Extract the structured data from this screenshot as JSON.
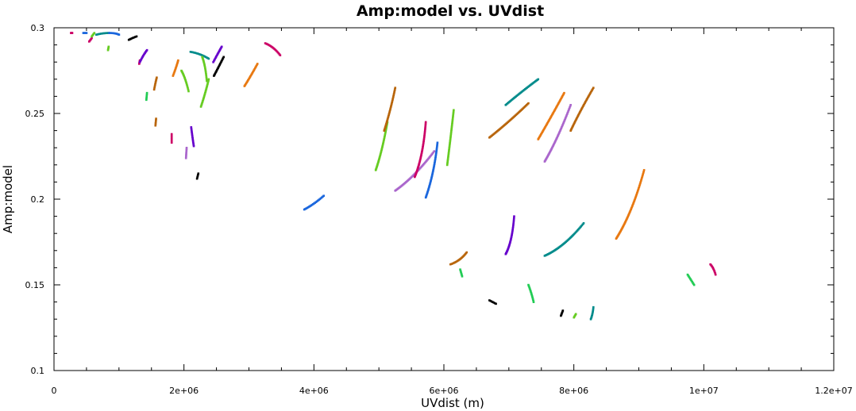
{
  "chart_data": {
    "type": "scatter",
    "title": "Amp:model vs. UVdist",
    "xlabel": "UVdist (m)",
    "ylabel": "Amp:model",
    "xlim": [
      0,
      12000000
    ],
    "ylim": [
      0.1,
      0.3
    ],
    "x_ticks": [
      {
        "value": 0,
        "label": "0"
      },
      {
        "value": 2000000,
        "label": "2e+06"
      },
      {
        "value": 4000000,
        "label": "4e+06"
      },
      {
        "value": 6000000,
        "label": "6e+06"
      },
      {
        "value": 8000000,
        "label": "8e+06"
      },
      {
        "value": 10000000,
        "label": "1e+07"
      },
      {
        "value": 12000000,
        "label": "1.2e+07"
      }
    ],
    "y_ticks": [
      {
        "value": 0.1,
        "label": "0.1"
      },
      {
        "value": 0.15,
        "label": "0.15"
      },
      {
        "value": 0.2,
        "label": "0.2"
      },
      {
        "value": 0.25,
        "label": "0.25"
      },
      {
        "value": 0.3,
        "label": "0.3"
      }
    ],
    "grid": false,
    "legend": "none",
    "series": [
      {
        "color": "#cc0066",
        "points": [
          [
            260000,
            0.297
          ],
          [
            280000,
            0.297
          ]
        ]
      },
      {
        "color": "#1a66dd",
        "points": [
          [
            450000,
            0.297
          ],
          [
            500000,
            0.297
          ]
        ]
      },
      {
        "color": "#cc0066",
        "points": [
          [
            540000,
            0.292
          ],
          [
            580000,
            0.294
          ]
        ]
      },
      {
        "color": "#66cc22",
        "points": [
          [
            580000,
            0.295
          ],
          [
            620000,
            0.297
          ]
        ]
      },
      {
        "color": "#008b8b",
        "points": [
          [
            650000,
            0.296
          ],
          [
            750000,
            0.297
          ],
          [
            850000,
            0.297
          ]
        ]
      },
      {
        "color": "#1a66dd",
        "points": [
          [
            850000,
            0.297
          ],
          [
            950000,
            0.297
          ],
          [
            1000000,
            0.296
          ]
        ]
      },
      {
        "color": "#66cc22",
        "points": [
          [
            830000,
            0.287
          ],
          [
            840000,
            0.289
          ]
        ]
      },
      {
        "color": "#000000",
        "points": [
          [
            1150000,
            0.293
          ],
          [
            1200000,
            0.294
          ],
          [
            1270000,
            0.295
          ]
        ]
      },
      {
        "color": "#cc0066",
        "points": [
          [
            1310000,
            0.279
          ],
          [
            1320000,
            0.281
          ]
        ]
      },
      {
        "color": "#6600cc",
        "points": [
          [
            1320000,
            0.28
          ],
          [
            1370000,
            0.284
          ],
          [
            1430000,
            0.287
          ]
        ]
      },
      {
        "color": "#22cc55",
        "points": [
          [
            1420000,
            0.258
          ],
          [
            1430000,
            0.262
          ]
        ]
      },
      {
        "color": "#b8650b",
        "points": [
          [
            1540000,
            0.264
          ],
          [
            1560000,
            0.268
          ],
          [
            1580000,
            0.271
          ]
        ]
      },
      {
        "color": "#b8650b",
        "points": [
          [
            1560000,
            0.243
          ],
          [
            1570000,
            0.247
          ]
        ]
      },
      {
        "color": "#cc0066",
        "points": [
          [
            1810000,
            0.233
          ],
          [
            1810000,
            0.238
          ]
        ]
      },
      {
        "color": "#e87810",
        "points": [
          [
            1830000,
            0.272
          ],
          [
            1880000,
            0.277
          ],
          [
            1910000,
            0.281
          ]
        ]
      },
      {
        "color": "#66cc22",
        "points": [
          [
            1960000,
            0.275
          ],
          [
            2020000,
            0.271
          ],
          [
            2070000,
            0.263
          ]
        ]
      },
      {
        "color": "#aa66cc",
        "points": [
          [
            2030000,
            0.224
          ],
          [
            2040000,
            0.23
          ]
        ]
      },
      {
        "color": "#6600cc",
        "points": [
          [
            2110000,
            0.242
          ],
          [
            2130000,
            0.236
          ],
          [
            2150000,
            0.231
          ]
        ]
      },
      {
        "color": "#000000",
        "points": [
          [
            2200000,
            0.212
          ],
          [
            2220000,
            0.215
          ]
        ]
      },
      {
        "color": "#008b8b",
        "points": [
          [
            2100000,
            0.286
          ],
          [
            2250000,
            0.285
          ],
          [
            2380000,
            0.282
          ]
        ]
      },
      {
        "color": "#66cc22",
        "points": [
          [
            2280000,
            0.283
          ],
          [
            2330000,
            0.278
          ],
          [
            2350000,
            0.269
          ]
        ]
      },
      {
        "color": "#66cc22",
        "points": [
          [
            2260000,
            0.254
          ],
          [
            2330000,
            0.262
          ],
          [
            2380000,
            0.27
          ]
        ]
      },
      {
        "color": "#6600cc",
        "points": [
          [
            2450000,
            0.28
          ],
          [
            2520000,
            0.285
          ],
          [
            2580000,
            0.289
          ]
        ]
      },
      {
        "color": "#000000",
        "points": [
          [
            2460000,
            0.272
          ],
          [
            2530000,
            0.277
          ],
          [
            2610000,
            0.283
          ]
        ]
      },
      {
        "color": "#e87810",
        "points": [
          [
            2930000,
            0.266
          ],
          [
            3030000,
            0.272
          ],
          [
            3130000,
            0.279
          ]
        ]
      },
      {
        "color": "#cc0066",
        "points": [
          [
            3250000,
            0.291
          ],
          [
            3380000,
            0.289
          ],
          [
            3480000,
            0.284
          ]
        ]
      },
      {
        "color": "#1a66dd",
        "points": [
          [
            3850000,
            0.194
          ],
          [
            4000000,
            0.197
          ],
          [
            4150000,
            0.202
          ]
        ]
      },
      {
        "color": "#66cc22",
        "points": [
          [
            4950000,
            0.217
          ],
          [
            5050000,
            0.228
          ],
          [
            5130000,
            0.245
          ]
        ]
      },
      {
        "color": "#b8650b",
        "points": [
          [
            5080000,
            0.24
          ],
          [
            5180000,
            0.252
          ],
          [
            5250000,
            0.265
          ]
        ]
      },
      {
        "color": "#aa66cc",
        "points": [
          [
            5250000,
            0.205
          ],
          [
            5550000,
            0.213
          ],
          [
            5850000,
            0.228
          ]
        ]
      },
      {
        "color": "#cc0066",
        "points": [
          [
            5550000,
            0.213
          ],
          [
            5680000,
            0.225
          ],
          [
            5720000,
            0.245
          ]
        ]
      },
      {
        "color": "#1a66dd",
        "points": [
          [
            5720000,
            0.201
          ],
          [
            5850000,
            0.215
          ],
          [
            5900000,
            0.233
          ]
        ]
      },
      {
        "color": "#66cc22",
        "points": [
          [
            6050000,
            0.22
          ],
          [
            6100000,
            0.235
          ],
          [
            6150000,
            0.252
          ]
        ]
      },
      {
        "color": "#b8650b",
        "points": [
          [
            6100000,
            0.162
          ],
          [
            6250000,
            0.164
          ],
          [
            6350000,
            0.169
          ]
        ]
      },
      {
        "color": "#22cc55",
        "points": [
          [
            6250000,
            0.159
          ],
          [
            6280000,
            0.155
          ]
        ]
      },
      {
        "color": "#b8650b",
        "points": [
          [
            6700000,
            0.236
          ],
          [
            7000000,
            0.245
          ],
          [
            7300000,
            0.256
          ]
        ]
      },
      {
        "color": "#008b8b",
        "points": [
          [
            6950000,
            0.255
          ],
          [
            7200000,
            0.263
          ],
          [
            7450000,
            0.27
          ]
        ]
      },
      {
        "color": "#000000",
        "points": [
          [
            6700000,
            0.141
          ],
          [
            6800000,
            0.139
          ]
        ]
      },
      {
        "color": "#6600cc",
        "points": [
          [
            6950000,
            0.168
          ],
          [
            7050000,
            0.175
          ],
          [
            7080000,
            0.19
          ]
        ]
      },
      {
        "color": "#22cc55",
        "points": [
          [
            7300000,
            0.15
          ],
          [
            7350000,
            0.145
          ],
          [
            7380000,
            0.14
          ]
        ]
      },
      {
        "color": "#e87810",
        "points": [
          [
            7450000,
            0.235
          ],
          [
            7650000,
            0.248
          ],
          [
            7850000,
            0.262
          ]
        ]
      },
      {
        "color": "#aa66cc",
        "points": [
          [
            7550000,
            0.222
          ],
          [
            7750000,
            0.235
          ],
          [
            7950000,
            0.255
          ]
        ]
      },
      {
        "color": "#b8650b",
        "points": [
          [
            7950000,
            0.24
          ],
          [
            8100000,
            0.252
          ],
          [
            8300000,
            0.265
          ]
        ]
      },
      {
        "color": "#008b8b",
        "points": [
          [
            7550000,
            0.167
          ],
          [
            7850000,
            0.172
          ],
          [
            8150000,
            0.186
          ]
        ]
      },
      {
        "color": "#000000",
        "points": [
          [
            7800000,
            0.132
          ],
          [
            7830000,
            0.135
          ]
        ]
      },
      {
        "color": "#66cc22",
        "points": [
          [
            8000000,
            0.131
          ],
          [
            8030000,
            0.133
          ]
        ]
      },
      {
        "color": "#008b8b",
        "points": [
          [
            8260000,
            0.13
          ],
          [
            8290000,
            0.133
          ],
          [
            8300000,
            0.137
          ]
        ]
      },
      {
        "color": "#e87810",
        "points": [
          [
            8650000,
            0.177
          ],
          [
            8900000,
            0.192
          ],
          [
            9080000,
            0.217
          ]
        ]
      },
      {
        "color": "#22cc55",
        "points": [
          [
            9750000,
            0.156
          ],
          [
            9800000,
            0.153
          ],
          [
            9850000,
            0.15
          ]
        ]
      },
      {
        "color": "#cc0066",
        "points": [
          [
            10100000,
            0.162
          ],
          [
            10150000,
            0.16
          ],
          [
            10180000,
            0.156
          ]
        ]
      }
    ]
  }
}
